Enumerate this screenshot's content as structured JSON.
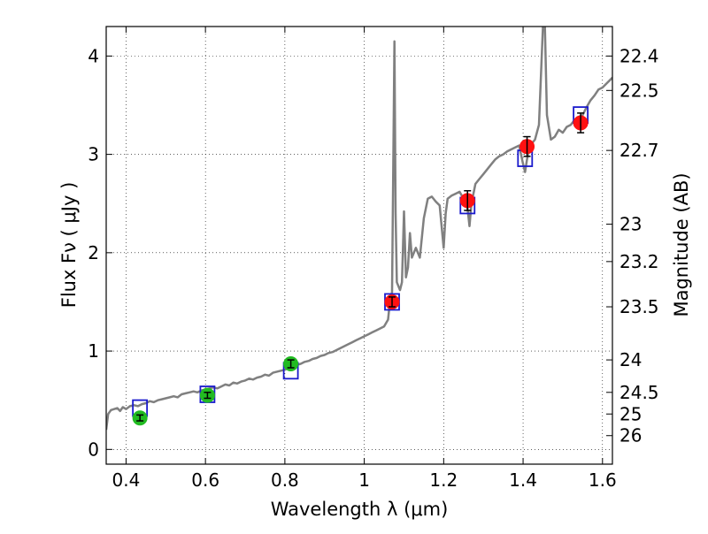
{
  "chart_data": {
    "type": "scatter",
    "xlabel": "Wavelength  λ (μm)",
    "ylabel": "Flux  Fν  ( μJy )",
    "ylabel_right": "Magnitude (AB)",
    "xlim": [
      0.35,
      1.625
    ],
    "ylim": [
      -0.15,
      4.3
    ],
    "x_ticks": [
      0.4,
      0.6,
      0.8,
      1.0,
      1.2,
      1.4,
      1.6
    ],
    "x_tick_labels": [
      "0.4",
      "0.6",
      "0.8",
      "1",
      "1.2",
      "1.4",
      "1.6"
    ],
    "y_ticks": [
      0,
      1,
      2,
      3,
      4
    ],
    "y_tick_labels": [
      "0",
      "1",
      "2",
      "3",
      "4"
    ],
    "right_ticks": [
      {
        "flux": 4.0,
        "label": "22.4"
      },
      {
        "flux": 3.65,
        "label": "22.5"
      },
      {
        "flux": 3.04,
        "label": "22.7"
      },
      {
        "flux": 2.29,
        "label": "23"
      },
      {
        "flux": 1.91,
        "label": "23.2"
      },
      {
        "flux": 1.45,
        "label": "23.5"
      },
      {
        "flux": 0.91,
        "label": "24"
      },
      {
        "flux": 0.58,
        "label": "24.5"
      },
      {
        "flux": 0.36,
        "label": "25"
      },
      {
        "flux": 0.14,
        "label": "26"
      }
    ],
    "grid": true,
    "colors": {
      "spectrum": "#808080",
      "photometry_optical": "#22bb22",
      "photometry_nir": "#ff1111",
      "model_boxes": "#1a1acc"
    },
    "series": [
      {
        "kind": "line",
        "color": "#808080",
        "points": [
          [
            0.35,
            0.2
          ],
          [
            0.355,
            0.36
          ],
          [
            0.362,
            0.4
          ],
          [
            0.37,
            0.41
          ],
          [
            0.378,
            0.42
          ],
          [
            0.385,
            0.39
          ],
          [
            0.392,
            0.43
          ],
          [
            0.4,
            0.41
          ],
          [
            0.41,
            0.44
          ],
          [
            0.42,
            0.45
          ],
          [
            0.43,
            0.44
          ],
          [
            0.44,
            0.46
          ],
          [
            0.45,
            0.47
          ],
          [
            0.46,
            0.49
          ],
          [
            0.47,
            0.48
          ],
          [
            0.48,
            0.5
          ],
          [
            0.49,
            0.51
          ],
          [
            0.5,
            0.52
          ],
          [
            0.51,
            0.53
          ],
          [
            0.52,
            0.54
          ],
          [
            0.53,
            0.53
          ],
          [
            0.54,
            0.56
          ],
          [
            0.55,
            0.57
          ],
          [
            0.56,
            0.58
          ],
          [
            0.57,
            0.59
          ],
          [
            0.58,
            0.58
          ],
          [
            0.59,
            0.6
          ],
          [
            0.6,
            0.61
          ],
          [
            0.61,
            0.62
          ],
          [
            0.62,
            0.63
          ],
          [
            0.63,
            0.62
          ],
          [
            0.64,
            0.64
          ],
          [
            0.65,
            0.66
          ],
          [
            0.66,
            0.65
          ],
          [
            0.67,
            0.68
          ],
          [
            0.68,
            0.67
          ],
          [
            0.69,
            0.69
          ],
          [
            0.7,
            0.7
          ],
          [
            0.71,
            0.72
          ],
          [
            0.72,
            0.71
          ],
          [
            0.73,
            0.73
          ],
          [
            0.74,
            0.74
          ],
          [
            0.75,
            0.76
          ],
          [
            0.76,
            0.75
          ],
          [
            0.77,
            0.78
          ],
          [
            0.78,
            0.79
          ],
          [
            0.79,
            0.8
          ],
          [
            0.8,
            0.81
          ],
          [
            0.81,
            0.83
          ],
          [
            0.82,
            0.84
          ],
          [
            0.83,
            0.86
          ],
          [
            0.84,
            0.87
          ],
          [
            0.85,
            0.89
          ],
          [
            0.86,
            0.9
          ],
          [
            0.87,
            0.92
          ],
          [
            0.88,
            0.93
          ],
          [
            0.89,
            0.95
          ],
          [
            0.9,
            0.96
          ],
          [
            0.91,
            0.98
          ],
          [
            0.92,
            0.99
          ],
          [
            0.93,
            1.01
          ],
          [
            0.94,
            1.03
          ],
          [
            0.95,
            1.05
          ],
          [
            0.96,
            1.07
          ],
          [
            0.97,
            1.09
          ],
          [
            0.98,
            1.11
          ],
          [
            0.99,
            1.13
          ],
          [
            1.0,
            1.15
          ],
          [
            1.01,
            1.17
          ],
          [
            1.02,
            1.19
          ],
          [
            1.03,
            1.21
          ],
          [
            1.04,
            1.23
          ],
          [
            1.05,
            1.25
          ],
          [
            1.06,
            1.32
          ],
          [
            1.065,
            1.52
          ],
          [
            1.07,
            1.6
          ],
          [
            1.073,
            2.9
          ],
          [
            1.076,
            4.15
          ],
          [
            1.079,
            2.4
          ],
          [
            1.082,
            1.7
          ],
          [
            1.09,
            1.62
          ],
          [
            1.095,
            1.7
          ],
          [
            1.1,
            2.42
          ],
          [
            1.105,
            1.75
          ],
          [
            1.11,
            1.85
          ],
          [
            1.115,
            2.2
          ],
          [
            1.12,
            1.95
          ],
          [
            1.13,
            2.05
          ],
          [
            1.14,
            1.95
          ],
          [
            1.15,
            2.35
          ],
          [
            1.16,
            2.55
          ],
          [
            1.17,
            2.57
          ],
          [
            1.18,
            2.52
          ],
          [
            1.19,
            2.48
          ],
          [
            1.2,
            2.05
          ],
          [
            1.205,
            2.4
          ],
          [
            1.21,
            2.55
          ],
          [
            1.22,
            2.58
          ],
          [
            1.23,
            2.6
          ],
          [
            1.24,
            2.62
          ],
          [
            1.25,
            2.55
          ],
          [
            1.26,
            2.45
          ],
          [
            1.265,
            2.27
          ],
          [
            1.27,
            2.5
          ],
          [
            1.28,
            2.7
          ],
          [
            1.29,
            2.75
          ],
          [
            1.3,
            2.8
          ],
          [
            1.31,
            2.85
          ],
          [
            1.32,
            2.9
          ],
          [
            1.33,
            2.95
          ],
          [
            1.34,
            2.98
          ],
          [
            1.35,
            3.0
          ],
          [
            1.36,
            3.03
          ],
          [
            1.37,
            3.05
          ],
          [
            1.38,
            3.07
          ],
          [
            1.39,
            3.09
          ],
          [
            1.4,
            2.9
          ],
          [
            1.405,
            2.82
          ],
          [
            1.41,
            2.95
          ],
          [
            1.415,
            3.05
          ],
          [
            1.42,
            3.1
          ],
          [
            1.43,
            3.15
          ],
          [
            1.44,
            3.3
          ],
          [
            1.45,
            4.3
          ],
          [
            1.455,
            4.3
          ],
          [
            1.46,
            3.4
          ],
          [
            1.47,
            3.15
          ],
          [
            1.48,
            3.18
          ],
          [
            1.49,
            3.25
          ],
          [
            1.5,
            3.22
          ],
          [
            1.51,
            3.28
          ],
          [
            1.52,
            3.3
          ],
          [
            1.53,
            3.35
          ],
          [
            1.54,
            3.38
          ],
          [
            1.55,
            3.4
          ],
          [
            1.56,
            3.48
          ],
          [
            1.57,
            3.55
          ],
          [
            1.58,
            3.6
          ],
          [
            1.59,
            3.66
          ],
          [
            1.6,
            3.68
          ],
          [
            1.61,
            3.72
          ],
          [
            1.625,
            3.78
          ]
        ]
      },
      {
        "kind": "points_with_errors",
        "color": "#22bb22",
        "x": [
          0.435,
          0.605,
          0.815
        ],
        "y": [
          0.32,
          0.55,
          0.87
        ],
        "yerr": [
          0.03,
          0.03,
          0.04
        ]
      },
      {
        "kind": "points_with_errors",
        "color": "#ff1111",
        "x": [
          1.07,
          1.26,
          1.41,
          1.545
        ],
        "y": [
          1.5,
          2.53,
          3.08,
          3.32
        ],
        "yerr": [
          0.05,
          0.1,
          0.1,
          0.1
        ]
      },
      {
        "kind": "open_squares",
        "color": "#1a1acc",
        "x": [
          0.435,
          0.605,
          0.815,
          1.07,
          1.26,
          1.405,
          1.545
        ],
        "y": [
          0.42,
          0.56,
          0.8,
          1.5,
          2.48,
          2.96,
          3.4
        ]
      }
    ]
  }
}
